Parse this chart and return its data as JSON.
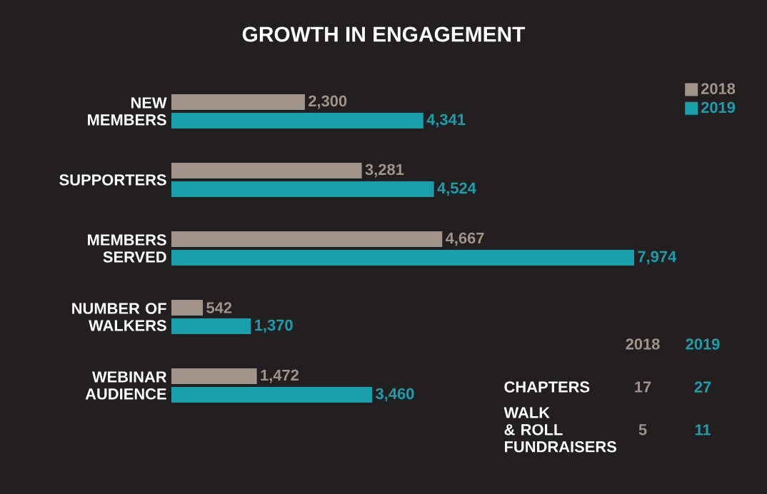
{
  "chart_data": [
    {
      "type": "bar",
      "orientation": "horizontal",
      "title": "GROWTH IN ENGAGEMENT",
      "categories": [
        "NEW MEMBERS",
        "SUPPORTERS",
        "MEMBERS SERVED",
        "NUMBER OF WALKERS",
        "WEBINAR AUDIENCE"
      ],
      "series": [
        {
          "name": "2018",
          "color": "#a0948a",
          "values": [
            2300,
            3281,
            4667,
            542,
            1472
          ],
          "value_labels": [
            "2,300",
            "3,281",
            "4,667",
            "542",
            "1,472"
          ]
        },
        {
          "name": "2019",
          "color": "#1a9fad",
          "values": [
            4341,
            4524,
            7974,
            1370,
            3460
          ],
          "value_labels": [
            "4,341",
            "4,524",
            "7,974",
            "1,370",
            "3,460"
          ]
        }
      ],
      "tick_labels": "y",
      "legend": "top right"
    },
    {
      "type": "other",
      "categories": [
        "CHAPTERS",
        "WALK & ROLL FUNDRAISERS"
      ],
      "series": [
        {
          "name": "2018",
          "color": "#a0948a",
          "values": [
            17,
            5
          ]
        },
        {
          "name": "2019",
          "color": "#1a9fad",
          "values": [
            27,
            11
          ]
        }
      ],
      "data_labels": true
    }
  ]
}
